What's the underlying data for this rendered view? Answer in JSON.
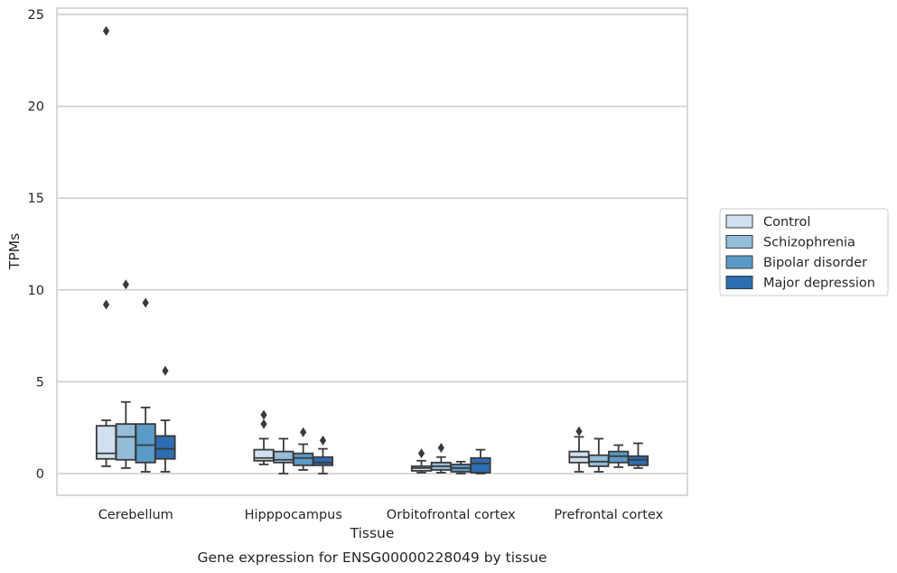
{
  "chart_data": {
    "type": "box",
    "title": "",
    "caption": "Gene expression for ENSG00000228049 by tissue",
    "xlabel": "Tissue",
    "ylabel": "TPMs",
    "ylim": [
      -1.2,
      25.4
    ],
    "yticks": [
      0,
      5,
      10,
      15,
      20,
      25
    ],
    "grid": "horizontal",
    "legend_position": "right",
    "categories": [
      "Cerebellum",
      "Hipppocampus",
      "Orbitofrontal cortex",
      "Prefrontal cortex"
    ],
    "series": [
      {
        "name": "Control",
        "color": "#d0e0f0",
        "boxes": [
          {
            "whisker_low": 0.4,
            "q1": 0.8,
            "median": 1.1,
            "q3": 2.6,
            "whisker_high": 2.9,
            "outliers": [
              9.2,
              24.1
            ]
          },
          {
            "whisker_low": 0.5,
            "q1": 0.7,
            "median": 0.85,
            "q3": 1.3,
            "whisker_high": 1.9,
            "outliers": [
              2.7,
              3.2
            ]
          },
          {
            "whisker_low": 0.05,
            "q1": 0.15,
            "median": 0.3,
            "q3": 0.4,
            "whisker_high": 0.7,
            "outliers": [
              1.1
            ]
          },
          {
            "whisker_low": 0.1,
            "q1": 0.6,
            "median": 0.9,
            "q3": 1.2,
            "whisker_high": 2.0,
            "outliers": [
              2.3
            ]
          }
        ]
      },
      {
        "name": "Schizophrenia",
        "color": "#93bdd9",
        "boxes": [
          {
            "whisker_low": 0.3,
            "q1": 0.75,
            "median": 2.0,
            "q3": 2.7,
            "whisker_high": 3.9,
            "outliers": [
              10.3
            ]
          },
          {
            "whisker_low": 0.0,
            "q1": 0.6,
            "median": 0.75,
            "q3": 1.2,
            "whisker_high": 1.9,
            "outliers": []
          },
          {
            "whisker_low": 0.05,
            "q1": 0.2,
            "median": 0.4,
            "q3": 0.6,
            "whisker_high": 0.9,
            "outliers": [
              1.4
            ]
          },
          {
            "whisker_low": 0.1,
            "q1": 0.4,
            "median": 0.65,
            "q3": 1.0,
            "whisker_high": 1.9,
            "outliers": []
          }
        ]
      },
      {
        "name": "Bipolar disorder",
        "color": "#5a9ac6",
        "boxes": [
          {
            "whisker_low": 0.1,
            "q1": 0.6,
            "median": 1.55,
            "q3": 2.7,
            "whisker_high": 3.6,
            "outliers": [
              9.3
            ]
          },
          {
            "whisker_low": 0.2,
            "q1": 0.45,
            "median": 0.85,
            "q3": 1.1,
            "whisker_high": 1.6,
            "outliers": [
              2.25
            ]
          },
          {
            "whisker_low": 0.0,
            "q1": 0.1,
            "median": 0.3,
            "q3": 0.5,
            "whisker_high": 0.65,
            "outliers": []
          },
          {
            "whisker_low": 0.35,
            "q1": 0.6,
            "median": 0.95,
            "q3": 1.2,
            "whisker_high": 1.55,
            "outliers": []
          }
        ]
      },
      {
        "name": "Major depression",
        "color": "#2d6db1",
        "boxes": [
          {
            "whisker_low": 0.1,
            "q1": 0.8,
            "median": 1.35,
            "q3": 2.05,
            "whisker_high": 2.9,
            "outliers": [
              5.6
            ]
          },
          {
            "whisker_low": 0.0,
            "q1": 0.45,
            "median": 0.6,
            "q3": 0.9,
            "whisker_high": 1.35,
            "outliers": [
              1.8
            ]
          },
          {
            "whisker_low": 0.0,
            "q1": 0.05,
            "median": 0.55,
            "q3": 0.85,
            "whisker_high": 1.3,
            "outliers": []
          },
          {
            "whisker_low": 0.3,
            "q1": 0.45,
            "median": 0.75,
            "q3": 0.95,
            "whisker_high": 1.65,
            "outliers": []
          }
        ]
      }
    ]
  }
}
